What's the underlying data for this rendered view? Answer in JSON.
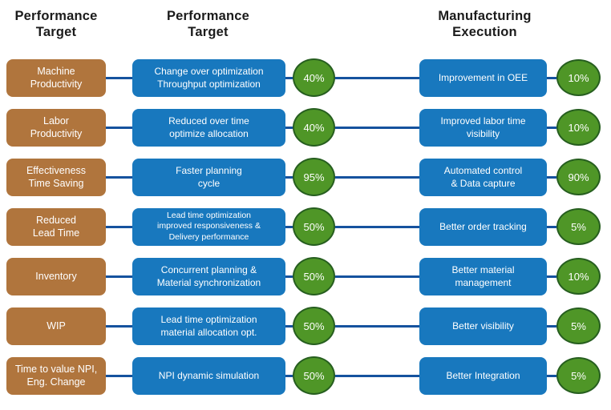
{
  "colors": {
    "brown": "#b0753d",
    "blue": "#1878be",
    "line": "#15529e",
    "green": "#4f9627",
    "green-dark": "#265e1f",
    "header-text": "#1b1b1b",
    "box-text": "#ffffff"
  },
  "headers": [
    "Performance\nTarget",
    "Performance\nTarget",
    "Manufacturing\nExecution"
  ],
  "rows": [
    {
      "target": "Machine\nProductivity",
      "initiative": "Change over optimization\nThroughput optimization",
      "mid_percent": "40%",
      "execution": "Improvement in OEE",
      "right_percent": "10%"
    },
    {
      "target": "Labor\nProductivity",
      "initiative": "Reduced over time\noptimize allocation",
      "mid_percent": "40%",
      "execution": "Improved labor time\nvisibility",
      "right_percent": "10%"
    },
    {
      "target": "Effectiveness\nTime Saving",
      "initiative": "Faster planning\ncycle",
      "mid_percent": "95%",
      "execution": "Automated control\n& Data capture",
      "right_percent": "90%"
    },
    {
      "target": "Reduced\nLead Time",
      "initiative": "Lead time optimization\nimproved responsiveness &\nDelivery performance",
      "mid_percent": "50%",
      "execution": "Better order tracking",
      "right_percent": "5%"
    },
    {
      "target": "Inventory",
      "initiative": "Concurrent planning &\nMaterial synchronization",
      "mid_percent": "50%",
      "execution": "Better material\nmanagement",
      "right_percent": "10%"
    },
    {
      "target": "WIP",
      "initiative": "Lead time optimization\nmaterial allocation opt.",
      "mid_percent": "50%",
      "execution": "Better visibility",
      "right_percent": "5%"
    },
    {
      "target": "Time to value NPI,\nEng. Change",
      "initiative": "NPI dynamic simulation",
      "mid_percent": "50%",
      "execution": "Better Integration",
      "right_percent": "5%"
    }
  ]
}
